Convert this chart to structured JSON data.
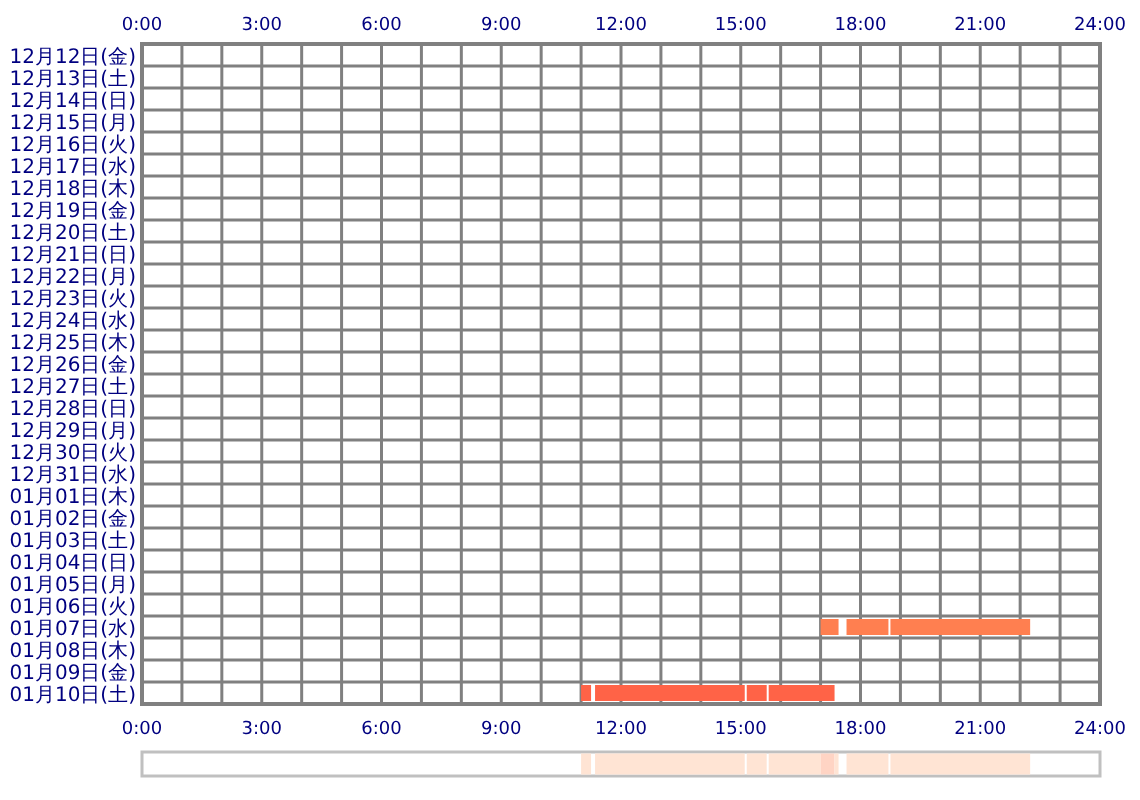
{
  "chart_data": [
    {
      "type": "bar",
      "orientation": "horizontal",
      "grid": true,
      "categories": [
        "12月12日(金)",
        "12月13日(土)",
        "12月14日(日)",
        "12月15日(月)",
        "12月16日(火)",
        "12月17日(水)",
        "12月18日(木)",
        "12月19日(金)",
        "12月20日(土)",
        "12月21日(日)",
        "12月22日(月)",
        "12月23日(火)",
        "12月24日(水)",
        "12月25日(木)",
        "12月26日(金)",
        "12月27日(土)",
        "12月28日(日)",
        "12月29日(月)",
        "12月30日(火)",
        "12月31日(水)",
        "01月01日(木)",
        "01月02日(金)",
        "01月03日(土)",
        "01月04日(日)",
        "01月05日(月)",
        "01月06日(火)",
        "01月07日(水)",
        "01月08日(木)",
        "01月09日(金)",
        "01月10日(土)"
      ],
      "series": [
        {
          "colors": [
            null,
            null,
            null,
            null,
            null,
            null,
            null,
            null,
            null,
            null,
            null,
            null,
            null,
            null,
            null,
            null,
            null,
            null,
            null,
            null,
            null,
            null,
            null,
            null,
            null,
            null,
            "#ff7f50",
            null,
            null,
            "#ff6347"
          ],
          "base": [
            null,
            null,
            null,
            null,
            null,
            null,
            null,
            null,
            null,
            null,
            null,
            null,
            null,
            null,
            null,
            null,
            null,
            null,
            null,
            null,
            null,
            null,
            null,
            null,
            null,
            null,
            17.0,
            null,
            null,
            11.0
          ],
          "values": [
            null,
            null,
            null,
            null,
            null,
            null,
            null,
            null,
            null,
            null,
            null,
            null,
            null,
            null,
            null,
            null,
            null,
            null,
            null,
            null,
            null,
            null,
            null,
            null,
            null,
            null,
            0.45,
            null,
            null,
            0.25
          ]
        },
        {
          "colors": [
            null,
            null,
            null,
            null,
            null,
            null,
            null,
            null,
            null,
            null,
            null,
            null,
            null,
            null,
            null,
            null,
            null,
            null,
            null,
            null,
            null,
            null,
            null,
            null,
            null,
            null,
            "#ff7f50",
            null,
            null,
            "#ff6347"
          ],
          "base": [
            null,
            null,
            null,
            null,
            null,
            null,
            null,
            null,
            null,
            null,
            null,
            null,
            null,
            null,
            null,
            null,
            null,
            null,
            null,
            null,
            null,
            null,
            null,
            null,
            null,
            null,
            17.65,
            null,
            null,
            11.35
          ],
          "values": [
            null,
            null,
            null,
            null,
            null,
            null,
            null,
            null,
            null,
            null,
            null,
            null,
            null,
            null,
            null,
            null,
            null,
            null,
            null,
            null,
            null,
            null,
            null,
            null,
            null,
            null,
            1.05,
            null,
            null,
            3.75
          ]
        },
        {
          "colors": [
            null,
            null,
            null,
            null,
            null,
            null,
            null,
            null,
            null,
            null,
            null,
            null,
            null,
            null,
            null,
            null,
            null,
            null,
            null,
            null,
            null,
            null,
            null,
            null,
            null,
            null,
            "#ff7f50",
            null,
            null,
            "#ff6347"
          ],
          "base": [
            null,
            null,
            null,
            null,
            null,
            null,
            null,
            null,
            null,
            null,
            null,
            null,
            null,
            null,
            null,
            null,
            null,
            null,
            null,
            null,
            null,
            null,
            null,
            null,
            null,
            null,
            18.75,
            null,
            null,
            15.15
          ],
          "values": [
            null,
            null,
            null,
            null,
            null,
            null,
            null,
            null,
            null,
            null,
            null,
            null,
            null,
            null,
            null,
            null,
            null,
            null,
            null,
            null,
            null,
            null,
            null,
            null,
            null,
            null,
            3.5,
            null,
            null,
            0.5
          ]
        },
        {
          "colors": [
            null,
            null,
            null,
            null,
            null,
            null,
            null,
            null,
            null,
            null,
            null,
            null,
            null,
            null,
            null,
            null,
            null,
            null,
            null,
            null,
            null,
            null,
            null,
            null,
            null,
            null,
            null,
            null,
            null,
            "#ff6347"
          ],
          "base": [
            null,
            null,
            null,
            null,
            null,
            null,
            null,
            null,
            null,
            null,
            null,
            null,
            null,
            null,
            null,
            null,
            null,
            null,
            null,
            null,
            null,
            null,
            null,
            null,
            null,
            null,
            null,
            null,
            null,
            15.7
          ],
          "values": [
            null,
            null,
            null,
            null,
            null,
            null,
            null,
            null,
            null,
            null,
            null,
            null,
            null,
            null,
            null,
            null,
            null,
            null,
            null,
            null,
            null,
            null,
            null,
            null,
            null,
            null,
            null,
            null,
            null,
            1.65
          ]
        }
      ],
      "xlim": [
        0,
        24
      ],
      "xticks": [
        {
          "value": 0,
          "label": "0:00"
        },
        {
          "value": 1,
          "label": null
        },
        {
          "value": 2,
          "label": null
        },
        {
          "value": 3,
          "label": "3:00"
        },
        {
          "value": 4,
          "label": null
        },
        {
          "value": 5,
          "label": null
        },
        {
          "value": 6,
          "label": "6:00"
        },
        {
          "value": 7,
          "label": null
        },
        {
          "value": 8,
          "label": null
        },
        {
          "value": 9,
          "label": "9:00"
        },
        {
          "value": 10,
          "label": null
        },
        {
          "value": 11,
          "label": null
        },
        {
          "value": 12,
          "label": "12:00"
        },
        {
          "value": 13,
          "label": null
        },
        {
          "value": 14,
          "label": null
        },
        {
          "value": 15,
          "label": "15:00"
        },
        {
          "value": 16,
          "label": null
        },
        {
          "value": 17,
          "label": null
        },
        {
          "value": 18,
          "label": "18:00"
        },
        {
          "value": 19,
          "label": null
        },
        {
          "value": 20,
          "label": null
        },
        {
          "value": 21,
          "label": "21:00"
        },
        {
          "value": 22,
          "label": null
        },
        {
          "value": 23,
          "label": null
        },
        {
          "value": 24,
          "label": "24:00"
        }
      ],
      "x2lim": [
        0,
        24
      ],
      "x2ticks": [
        {
          "value": 0,
          "label": "0:00"
        },
        {
          "value": 3,
          "label": "3:00"
        },
        {
          "value": 6,
          "label": "6:00"
        },
        {
          "value": 9,
          "label": "9:00"
        },
        {
          "value": 12,
          "label": "12:00"
        },
        {
          "value": 15,
          "label": "15:00"
        },
        {
          "value": 18,
          "label": "18:00"
        },
        {
          "value": 21,
          "label": "21:00"
        },
        {
          "value": 24,
          "label": "24:00"
        }
      ]
    },
    {
      "type": "bar",
      "orientation": "horizontal",
      "categories": [
        null
      ],
      "xlim": [
        0,
        24
      ],
      "series": [
        {
          "color": "#ffe4d4",
          "base": [
            11.0
          ],
          "values": [
            0.25
          ]
        },
        {
          "color": "#ffe4d4",
          "base": [
            11.35
          ],
          "values": [
            3.75
          ]
        },
        {
          "color": "#ffe4d4",
          "base": [
            15.15
          ],
          "values": [
            0.5
          ]
        },
        {
          "color": "#ffe4d4",
          "base": [
            15.7
          ],
          "values": [
            1.3
          ]
        },
        {
          "color": "#ffd4c4",
          "base": [
            17.0
          ],
          "values": [
            0.35
          ]
        },
        {
          "color": "#ffe4d4",
          "base": [
            17.35
          ],
          "values": [
            0.1
          ]
        },
        {
          "color": "#ffe4d4",
          "base": [
            17.65
          ],
          "values": [
            1.05
          ]
        },
        {
          "color": "#ffe4d4",
          "base": [
            18.75
          ],
          "values": [
            3.5
          ]
        }
      ]
    }
  ]
}
